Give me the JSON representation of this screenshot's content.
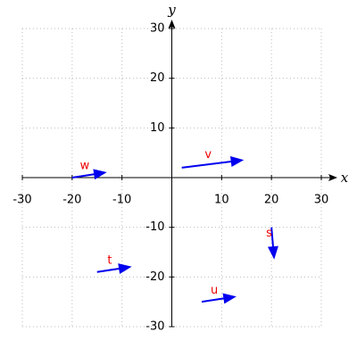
{
  "chart_data": {
    "type": "vector",
    "xlabel": "x",
    "ylabel": "y",
    "xlim": [
      -30,
      30
    ],
    "ylim": [
      -30,
      30
    ],
    "xticks": [
      -30,
      -20,
      -10,
      10,
      20,
      30
    ],
    "yticks": [
      -30,
      -20,
      -10,
      10,
      20,
      30
    ],
    "grid": true,
    "color": "#0000ee",
    "label_color": "#ee0000",
    "series": [
      {
        "name": "v",
        "x": 2,
        "y": 2,
        "dx": 12,
        "dy": 1.5
      },
      {
        "name": "w",
        "x": -20,
        "y": 0,
        "dx": 6.5,
        "dy": 1
      },
      {
        "name": "t",
        "x": -15,
        "y": -19,
        "dx": 6.5,
        "dy": 1
      },
      {
        "name": "u",
        "x": 6,
        "y": -25,
        "dx": 6.5,
        "dy": 1
      },
      {
        "name": "s",
        "x": 20,
        "y": -10,
        "dx": 0.5,
        "dy": -6
      }
    ]
  }
}
